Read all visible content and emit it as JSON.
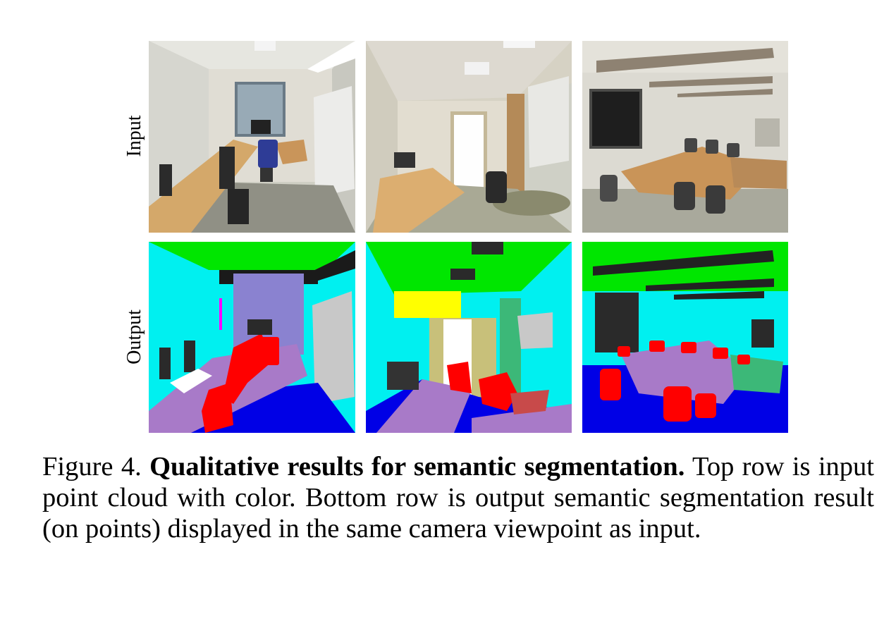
{
  "rows": {
    "input_label": "Input",
    "output_label": "Output"
  },
  "panels": [
    {
      "name": "office-input",
      "type": "input-point-cloud"
    },
    {
      "name": "hallway-input",
      "type": "input-point-cloud"
    },
    {
      "name": "conference-input",
      "type": "input-point-cloud"
    },
    {
      "name": "office-output",
      "type": "segmentation"
    },
    {
      "name": "hallway-output",
      "type": "segmentation"
    },
    {
      "name": "conference-output",
      "type": "segmentation"
    }
  ],
  "caption": {
    "prefix": "Figure 4.",
    "title": "Qualitative results for semantic segmentation.",
    "body": "Top row is input point cloud with color. Bottom row is output semantic segmentation result (on points) displayed in the same camera viewpoint as input."
  },
  "colors": {
    "ceiling": "#00e600",
    "wall": "#00f0f0",
    "floor": "#0000e6",
    "chair": "#ff0000",
    "table": "#a87ac8",
    "window": "#8a82d0",
    "door": "#c8c07a",
    "board": "#c8c8c8",
    "clutter": "#333333",
    "bookcase": "#3cb878",
    "column": "#ffff00"
  }
}
